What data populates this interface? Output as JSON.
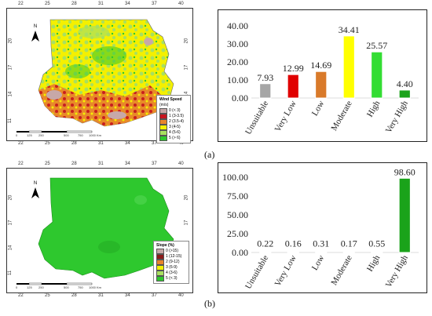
{
  "panel_a": {
    "label": "(a)",
    "map": {
      "north": "N",
      "top_ticks": [
        "22",
        "25",
        "28",
        "31",
        "34",
        "37",
        "40"
      ],
      "bottom_ticks": [
        "22",
        "25",
        "28",
        "31",
        "34",
        "37",
        "40"
      ],
      "left_ticks": [
        "20",
        "17",
        "14",
        "11"
      ],
      "right_ticks": [
        "20",
        "17",
        "14",
        "11"
      ],
      "scale_labels": [
        "0",
        "125",
        "250",
        "500",
        "750",
        "1000 Km"
      ],
      "legend": {
        "title": "Wind Speed",
        "unit": "(m/s)",
        "items": [
          {
            "label": "0 (< 3)",
            "color": "#c7a8a8"
          },
          {
            "label": "1 (3-3.5)",
            "color": "#c8141e"
          },
          {
            "label": "2 (3.5-4)",
            "color": "#e8842a"
          },
          {
            "label": "3 (4-5)",
            "color": "#f4f000"
          },
          {
            "label": "4 (5-6)",
            "color": "#a8e060"
          },
          {
            "label": "5 (> 6)",
            "color": "#2ec82e"
          }
        ]
      }
    },
    "chart_data": {
      "type": "bar",
      "categories": [
        "Unsuitable",
        "Very Low",
        "Low",
        "Moderate",
        "High",
        "Very High"
      ],
      "values": [
        7.93,
        12.99,
        14.69,
        34.41,
        25.57,
        4.4
      ],
      "value_labels": [
        "7.93",
        "12.99",
        "14.69",
        "34.41",
        "25.57",
        "4.40"
      ],
      "colors": [
        "#a6a6a6",
        "#e00000",
        "#d97a2a",
        "#ffff00",
        "#33dd33",
        "#1aa31a"
      ],
      "ylim": [
        0,
        40
      ],
      "yticks": [
        "0.00",
        "10.00",
        "20.00",
        "30.00",
        "40.00"
      ],
      "ytick_values": [
        0,
        10,
        20,
        30,
        40
      ],
      "grid": false
    }
  },
  "panel_b": {
    "label": "(b)",
    "map": {
      "north": "N",
      "top_ticks": [
        "22",
        "25",
        "28",
        "31",
        "34",
        "37",
        "40"
      ],
      "bottom_ticks": [
        "22",
        "25",
        "28",
        "31",
        "34",
        "37",
        "40"
      ],
      "left_ticks": [
        "20",
        "17",
        "14",
        "11"
      ],
      "right_ticks": [
        "20",
        "17",
        "14",
        "11"
      ],
      "scale_labels": [
        "0",
        "125",
        "250",
        "500",
        "750",
        "1000 Km"
      ],
      "legend": {
        "title": "Slope (%)",
        "items": [
          {
            "label": "0 (>15)",
            "color": "#c7a8a8"
          },
          {
            "label": "1 (12-15)",
            "color": "#8b1a1a"
          },
          {
            "label": "2 (9-12)",
            "color": "#e8842a"
          },
          {
            "label": "3 (6-9)",
            "color": "#f4f000"
          },
          {
            "label": "4 (3-6)",
            "color": "#a8e060"
          },
          {
            "label": "5 (< 3)",
            "color": "#2ec82e"
          }
        ]
      }
    },
    "chart_data": {
      "type": "bar",
      "categories": [
        "Unsuitable",
        "Very Low",
        "Low",
        "Moderate",
        "High",
        "Very High"
      ],
      "values": [
        0.22,
        0.16,
        0.31,
        0.17,
        0.55,
        98.6
      ],
      "value_labels": [
        "0.22",
        "0.16",
        "0.31",
        "0.17",
        "0.55",
        "98.60"
      ],
      "colors": [
        "#a6a6a6",
        "#e00000",
        "#d97a2a",
        "#ffff00",
        "#33dd33",
        "#1aa31a"
      ],
      "ylim": [
        0,
        100
      ],
      "yticks": [
        "0.00",
        "25.00",
        "50.00",
        "75.00",
        "100.00"
      ],
      "ytick_values": [
        0,
        25,
        50,
        75,
        100
      ],
      "grid": false
    }
  }
}
